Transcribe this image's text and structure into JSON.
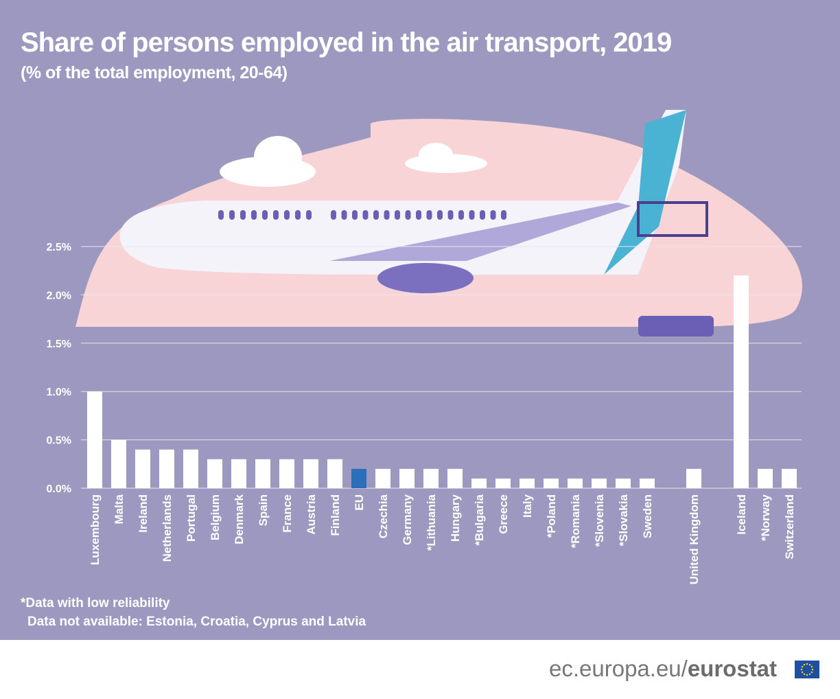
{
  "header": {
    "title": "Share of persons employed in the air transport, 2019",
    "subtitle": "(% of the total employment, 20-64)"
  },
  "notes": {
    "low_reliability": "*Data with low reliability",
    "not_available": "Data not available: Estonia, Croatia, Cyprus and Latvia"
  },
  "footer": {
    "site": "ec.europa.eu/",
    "brand": "eurostat"
  },
  "colors": {
    "background": "#9d98bf",
    "bar": "#ffffff",
    "eu_bar": "#2a6fb8",
    "illustration_blob": "#f8d4d6"
  },
  "chart_data": {
    "type": "bar",
    "title": "Share of persons employed in the air transport, 2019",
    "subtitle": "(% of the total employment, 20-64)",
    "ylim": [
      0,
      2.5
    ],
    "yticks": [
      "0.0%",
      "0.5%",
      "1.0%",
      "1.5%",
      "2.0%",
      "2.5%"
    ],
    "ytick_values": [
      0,
      0.5,
      1.0,
      1.5,
      2.0,
      2.5
    ],
    "grid": true,
    "categories": [
      "Luxembourg",
      "Malta",
      "Ireland",
      "Netherlands",
      "Portugal",
      "Belgium",
      "Denmark",
      "Spain",
      "France",
      "Austria",
      "Finland",
      "EU",
      "Czechia",
      "Germany",
      "*Lithuania",
      "Hungary",
      "*Bulgaria",
      "Greece",
      "Italy",
      "*Poland",
      "*Romania",
      "*Slovenia",
      "*Slovakia",
      "Sweden",
      "United Kingdom",
      "Iceland",
      "*Norway",
      "Switzerland"
    ],
    "values": [
      1.0,
      0.5,
      0.4,
      0.4,
      0.4,
      0.3,
      0.3,
      0.3,
      0.3,
      0.3,
      0.3,
      0.2,
      0.2,
      0.2,
      0.2,
      0.2,
      0.1,
      0.1,
      0.1,
      0.1,
      0.1,
      0.1,
      0.1,
      0.1,
      0.2,
      2.2,
      0.2,
      0.2
    ],
    "highlight": "EU"
  }
}
